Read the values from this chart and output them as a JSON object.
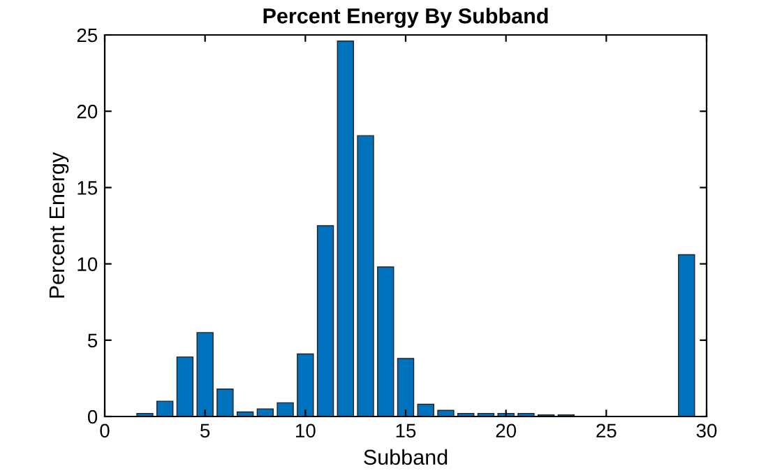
{
  "chart_data": {
    "type": "bar",
    "title": "Percent Energy By Subband",
    "xlabel": "Subband",
    "ylabel": "Percent Energy",
    "x": [
      2,
      3,
      4,
      5,
      6,
      7,
      8,
      9,
      10,
      11,
      12,
      13,
      14,
      15,
      16,
      17,
      18,
      19,
      20,
      21,
      22,
      23,
      29
    ],
    "values": [
      0.2,
      1.0,
      3.9,
      5.5,
      1.8,
      0.3,
      0.5,
      0.9,
      4.1,
      12.5,
      24.6,
      18.4,
      9.8,
      3.8,
      0.8,
      0.4,
      0.2,
      0.2,
      0.2,
      0.2,
      0.1,
      0.1,
      10.6
    ],
    "color": "#0072bd",
    "xlim": [
      0,
      30
    ],
    "xticks": [
      0,
      5,
      10,
      15,
      20,
      25,
      30
    ],
    "ylim": [
      0,
      25
    ],
    "yticks": [
      0,
      5,
      10,
      15,
      20,
      25
    ],
    "grid": false
  }
}
